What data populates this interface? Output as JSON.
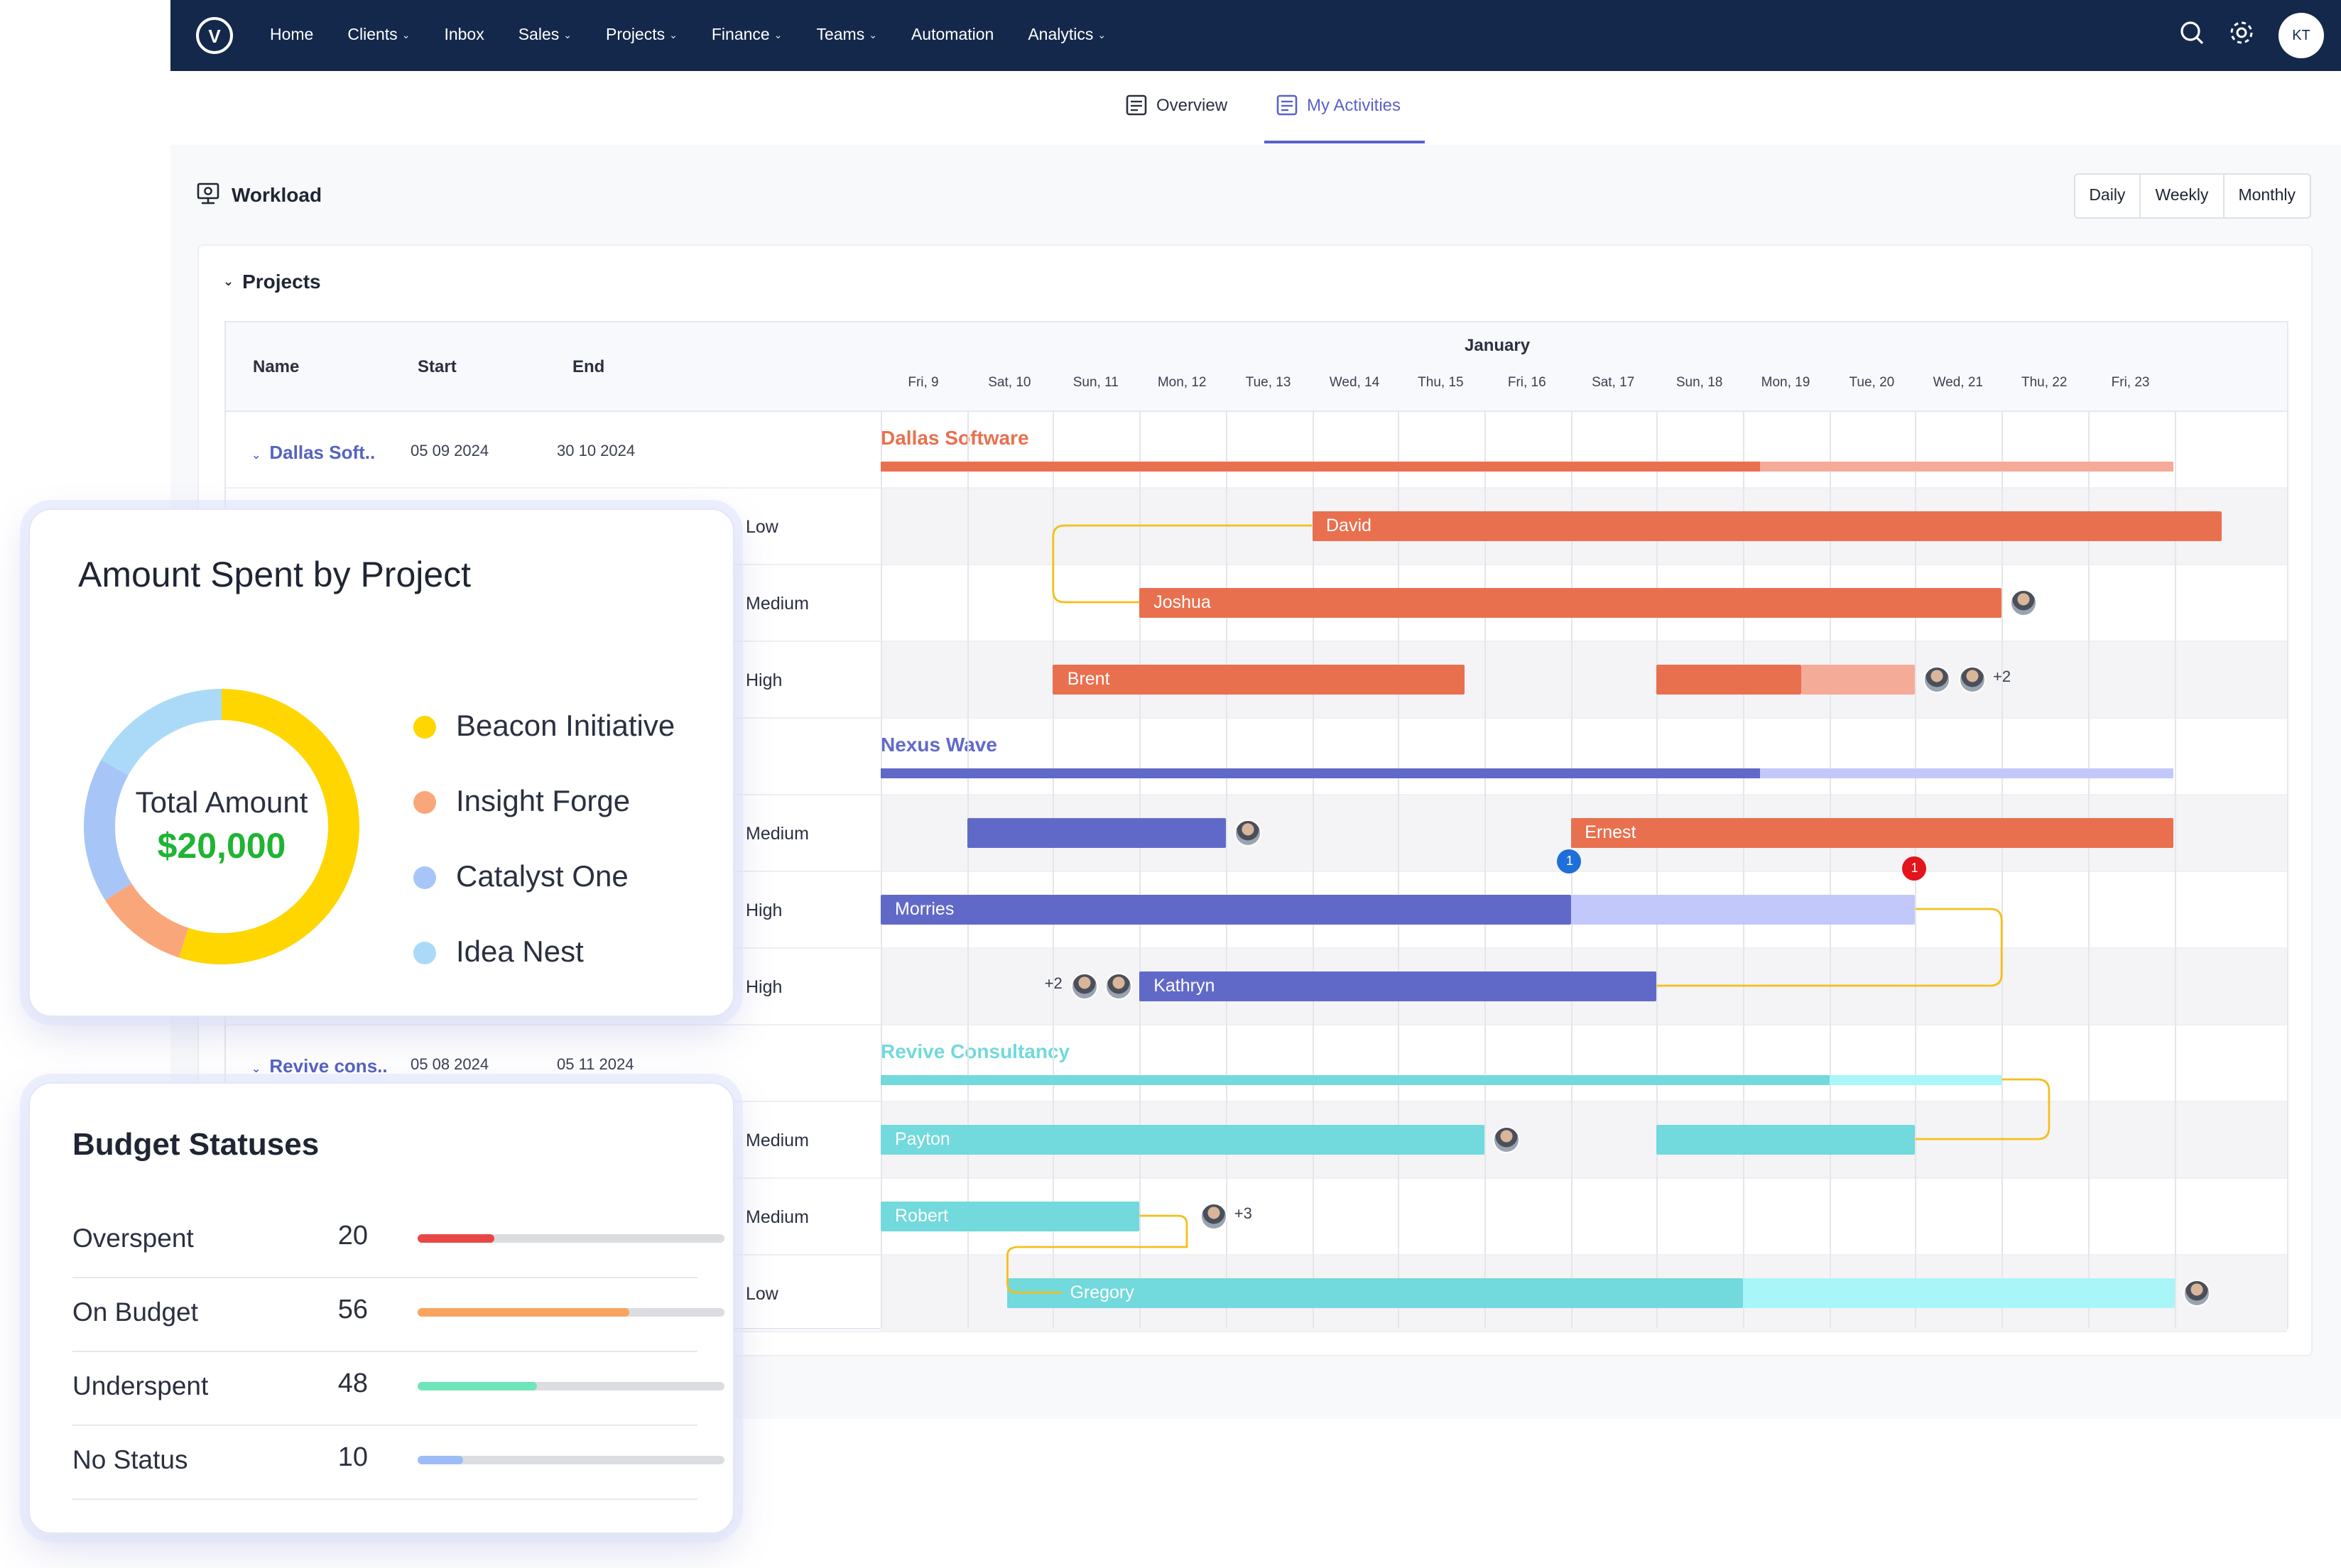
{
  "nav": {
    "logo": "V",
    "items": [
      {
        "label": "Home",
        "dropdown": false
      },
      {
        "label": "Clients",
        "dropdown": true
      },
      {
        "label": "Inbox",
        "dropdown": false
      },
      {
        "label": "Sales",
        "dropdown": true
      },
      {
        "label": "Projects",
        "dropdown": true
      },
      {
        "label": "Finance",
        "dropdown": true
      },
      {
        "label": "Teams",
        "dropdown": true
      },
      {
        "label": "Automation",
        "dropdown": false
      },
      {
        "label": "Analytics",
        "dropdown": true
      }
    ],
    "user_initials": "KT"
  },
  "tabs": {
    "overview": "Overview",
    "my_activities": "My Activities"
  },
  "workload": {
    "title": "Workload",
    "ranges": [
      "Daily",
      "Weekly",
      "Monthly"
    ],
    "section": "Projects",
    "columns": {
      "name": "Name",
      "start": "Start",
      "end": "End"
    },
    "month": "January",
    "days": [
      "Fri, 9",
      "Sat, 10",
      "Sun, 11",
      "Mon, 12",
      "Tue, 13",
      "Wed, 14",
      "Thu, 15",
      "Fri, 16",
      "Sat, 17",
      "Sun, 18",
      "Mon, 19",
      "Tue, 20",
      "Wed, 21",
      "Thu, 22",
      "Fri, 23"
    ],
    "projects": [
      {
        "name": "Dallas Soft..",
        "title": "Dallas Software",
        "start": "05 09 2024",
        "end": "30 10 2024",
        "color": "#e8704f",
        "light": "#f4ab97"
      },
      {
        "name": "",
        "title": "Nexus Wave",
        "start": "",
        "end": "",
        "color": "#6169c8",
        "light": "#c3c8fb"
      },
      {
        "name": "Revive cons..",
        "title": "Revive Consultancy",
        "start": "05 08 2024",
        "end": "05 11 2024",
        "color": "#72d9dc",
        "light": "#a8f6f8"
      }
    ],
    "priorities": [
      "Low",
      "Medium",
      "High",
      "Medium",
      "High",
      "High",
      "Medium",
      "Medium",
      "Low"
    ],
    "assignees": {
      "david": "David",
      "joshua": "Joshua",
      "brent": "Brent",
      "ernest": "Ernest",
      "morries": "Morries",
      "kathryn": "Kathryn",
      "payton": "Payton",
      "robert": "Robert",
      "gregory": "Gregory"
    },
    "extra_counts": {
      "brent": "+2",
      "kathryn": "+2",
      "robert": "+3"
    },
    "badges": {
      "ernest": "1",
      "morries": "1"
    }
  },
  "amount_card": {
    "title": "Amount Spent by Project",
    "center_label": "Total Amount",
    "total": "$20,000",
    "slices": [
      {
        "name": "Beacon Initiative",
        "value": 55,
        "color": "#ffd600"
      },
      {
        "name": "Insight Forge",
        "value": 11,
        "color": "#f9a77a"
      },
      {
        "name": "Catalyst One",
        "value": 17,
        "color": "#a7c6f7"
      },
      {
        "name": "Idea Nest",
        "value": 17,
        "color": "#abdaf8"
      }
    ]
  },
  "budget_card": {
    "title": "Budget Statuses",
    "max": 100,
    "rows": [
      {
        "label": "Overspent",
        "count": "20",
        "value": 25,
        "color": "#e84747"
      },
      {
        "label": "On Budget",
        "count": "56",
        "value": 69,
        "color": "#f9a45e"
      },
      {
        "label": "Underspent",
        "count": "48",
        "value": 39,
        "color": "#6ee6b9"
      },
      {
        "label": "No Status",
        "count": "10",
        "value": 15,
        "color": "#9dbdf6"
      }
    ]
  }
}
